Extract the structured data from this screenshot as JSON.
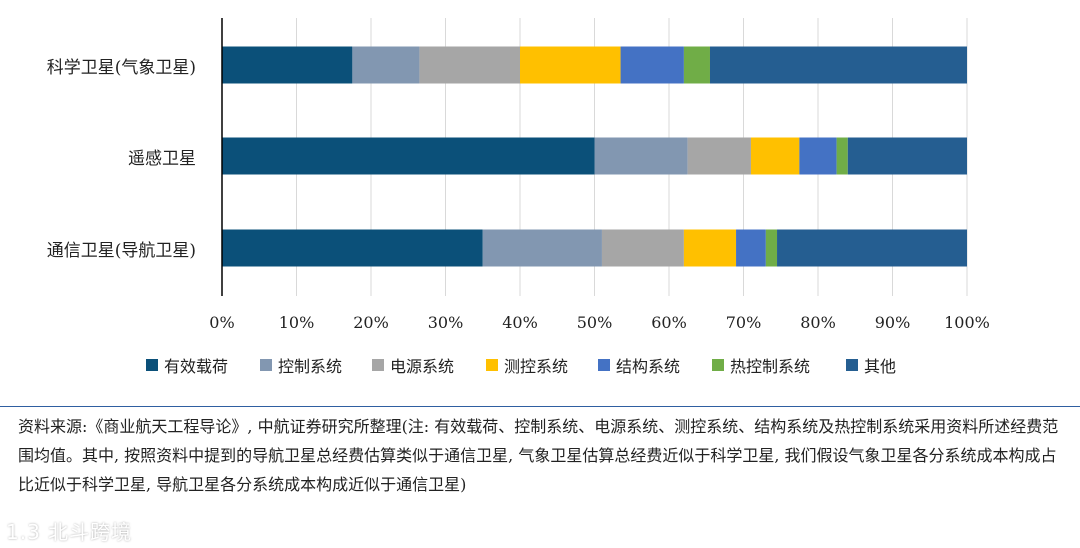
{
  "chart_data": {
    "type": "bar",
    "orientation": "horizontal",
    "stacked": "percent",
    "categories": [
      "科学卫星(气象卫星)",
      "遥感卫星",
      "通信卫星(导航卫星)"
    ],
    "x_ticks": [
      "0%",
      "10%",
      "20%",
      "30%",
      "40%",
      "50%",
      "60%",
      "70%",
      "80%",
      "90%",
      "100%"
    ],
    "xlim": [
      0,
      100
    ],
    "grid": "vertical",
    "legend_position": "bottom",
    "series": [
      {
        "name": "有效载荷",
        "color": "#0b5079",
        "values": [
          17.5,
          50,
          35
        ]
      },
      {
        "name": "控制系统",
        "color": "#8297b1",
        "values": [
          9,
          12.5,
          16
        ]
      },
      {
        "name": "电源系统",
        "color": "#a6a6a6",
        "values": [
          13.5,
          8.5,
          11
        ]
      },
      {
        "name": "测控系统",
        "color": "#ffc000",
        "values": [
          13.5,
          6.5,
          7
        ]
      },
      {
        "name": "结构系统",
        "color": "#4472c4",
        "values": [
          8.5,
          5,
          4
        ]
      },
      {
        "name": "热控制系统",
        "color": "#70ad47",
        "values": [
          3.5,
          1.5,
          1.5
        ]
      },
      {
        "name": "其他",
        "color": "#255e91",
        "values": [
          34.5,
          16,
          25.5
        ]
      }
    ]
  },
  "note": "资料来源:《商业航天工程导论》, 中航证券研究所整理(注: 有效载荷、控制系统、电源系统、测控系统、结构系统及热控制系统采用资料所述经费范围均值。其中, 按照资料中提到的导航卫星总经费估算类似于通信卫星, 气象卫星估算总经费近似于科学卫星, 我们假设气象卫星各分系统成本构成占比近似于科学卫星, 导航卫星各分系统成本构成近似于通信卫星)",
  "watermark": "1.3 北斗跨境"
}
